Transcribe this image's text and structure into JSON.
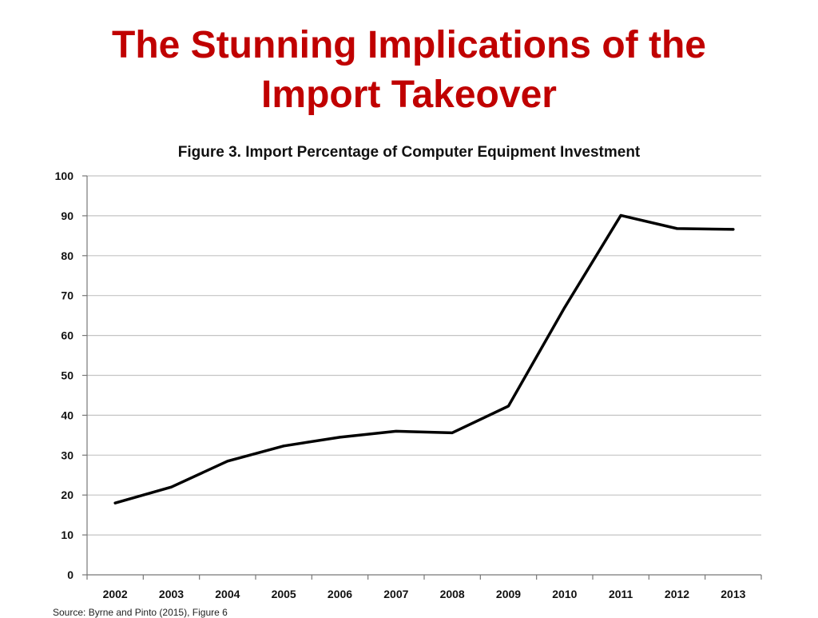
{
  "slide": {
    "title_line1": "The Stunning Implications of the",
    "title_line2": "Import Takeover",
    "title_color": "#c00000"
  },
  "chart_data": {
    "type": "line",
    "title": "Figure 3.  Import Percentage of Computer Equipment Investment",
    "xlabel": "",
    "ylabel": "",
    "categories": [
      "2002",
      "2003",
      "2004",
      "2005",
      "2006",
      "2007",
      "2008",
      "2009",
      "2010",
      "2011",
      "2012",
      "2013"
    ],
    "series": [
      {
        "values": [
          18,
          22,
          28.5,
          32.3,
          34.5,
          36,
          35.6,
          42.3,
          67,
          90.1,
          86.8,
          86.6
        ],
        "color": "#000000"
      }
    ],
    "ylim": [
      0,
      100
    ],
    "yticks": [
      0,
      10,
      20,
      30,
      40,
      50,
      60,
      70,
      80,
      90,
      100
    ],
    "grid": true,
    "legend": "none"
  },
  "footer": {
    "source": "Source: Byrne and Pinto (2015), Figure 6"
  }
}
